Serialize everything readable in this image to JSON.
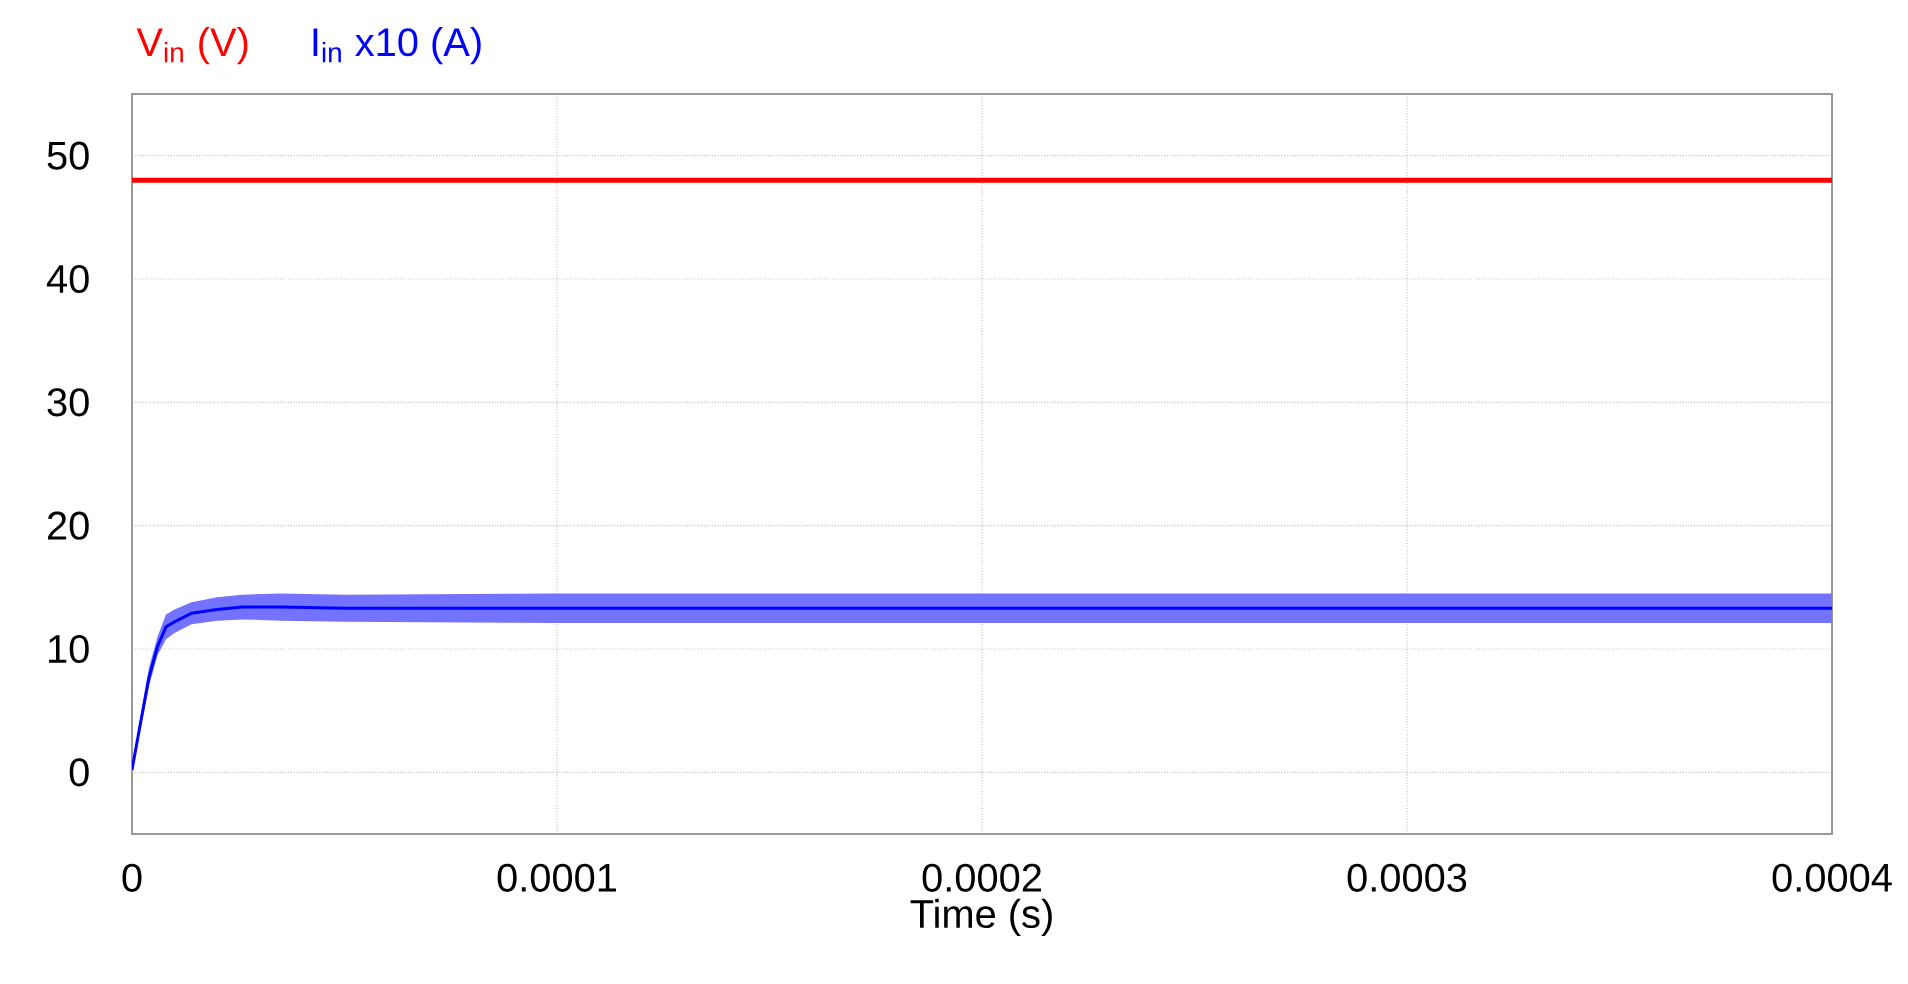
{
  "chart_data": {
    "type": "line",
    "xlabel": "Time (s)",
    "x": [
      0,
      2e-06,
      4e-06,
      6e-06,
      8e-06,
      1e-05,
      1.4e-05,
      2e-05,
      2.6e-05,
      3.5e-05,
      5e-05,
      0.0001,
      0.0002,
      0.0003,
      0.0004
    ],
    "series": [
      {
        "name": "V$_{in}$ (V)",
        "color": "#ff0000",
        "values": [
          48,
          48,
          48,
          48,
          48,
          48,
          48,
          48,
          48,
          48,
          48,
          48,
          48,
          48,
          48
        ]
      },
      {
        "name": "I$_{in}$ x10 (A)",
        "color": "#0000ff",
        "values": [
          0.2,
          4.0,
          7.7,
          10.2,
          11.8,
          12.2,
          12.9,
          13.2,
          13.4,
          13.4,
          13.3,
          13.3,
          13.3,
          13.3,
          13.3
        ],
        "lower": [
          0,
          3.5,
          7.0,
          9.5,
          10.8,
          11.3,
          12.0,
          12.3,
          12.4,
          12.3,
          12.2,
          12.1,
          12.1,
          12.1,
          12.1
        ],
        "upper": [
          0.5,
          4.5,
          8.5,
          11.0,
          12.8,
          13.2,
          13.8,
          14.2,
          14.4,
          14.5,
          14.4,
          14.5,
          14.5,
          14.5,
          14.5
        ]
      }
    ],
    "xlim": [
      0,
      0.0004
    ],
    "ylim": [
      -5,
      55
    ],
    "xticks": [
      0,
      0.0001,
      0.0002,
      0.0003,
      0.0004
    ],
    "yticks": [
      0,
      10,
      20,
      30,
      40,
      50
    ],
    "grid": true,
    "marker": "none",
    "line_style": "solid"
  }
}
